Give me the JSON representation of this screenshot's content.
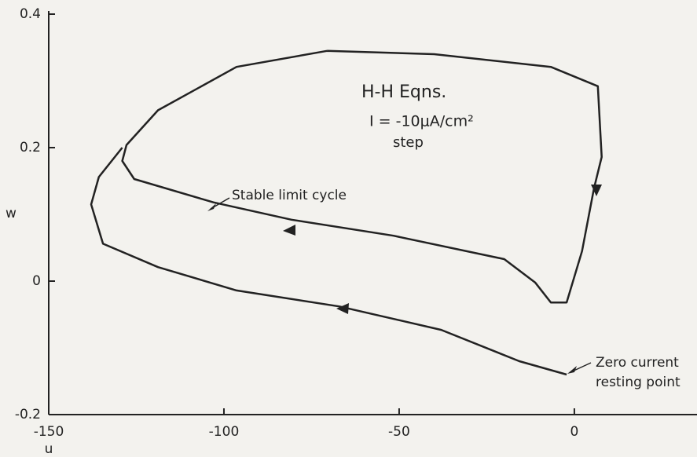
{
  "chart_data": {
    "type": "line",
    "xlabel": "u",
    "ylabel": "w",
    "xlim": [
      -150,
      35
    ],
    "ylim": [
      -0.2,
      0.4
    ],
    "xticks": [
      -150,
      -100,
      -50,
      0
    ],
    "yticks": [
      -0.2,
      0,
      0.2,
      0.4
    ],
    "annotations": [
      "H-H Eqns.",
      "I = -10μA/cm²",
      "step",
      "Stable limit cycle",
      "Zero current",
      "resting point"
    ],
    "series": [
      {
        "color": "#222222",
        "x": [
          -70.6,
          -40,
          -6.7,
          6.7,
          7.8,
          5.6,
          2.2,
          -2.2,
          -6.7,
          -11.2,
          -20,
          -51.6,
          -80.7,
          -103,
          -125.6,
          -129,
          -127.8,
          -118.8,
          -96.4,
          -70.6
        ],
        "values": [
          0.345,
          0.34,
          0.321,
          0.292,
          0.186,
          0.139,
          0.045,
          -0.032,
          -0.032,
          -0.002,
          0.033,
          0.068,
          0.092,
          0.118,
          0.153,
          0.18,
          0.204,
          0.256,
          0.321,
          0.345
        ]
      },
      {
        "color": "#222222",
        "x": [
          -2.2,
          -15.7,
          -38,
          -67,
          -96.4,
          -118.8,
          -134.5,
          -137.9,
          -135.7,
          -129
        ],
        "values": [
          -0.14,
          -0.12,
          -0.073,
          -0.038,
          -0.014,
          0.021,
          0.056,
          0.115,
          0.156,
          0.2
        ]
      }
    ]
  }
}
